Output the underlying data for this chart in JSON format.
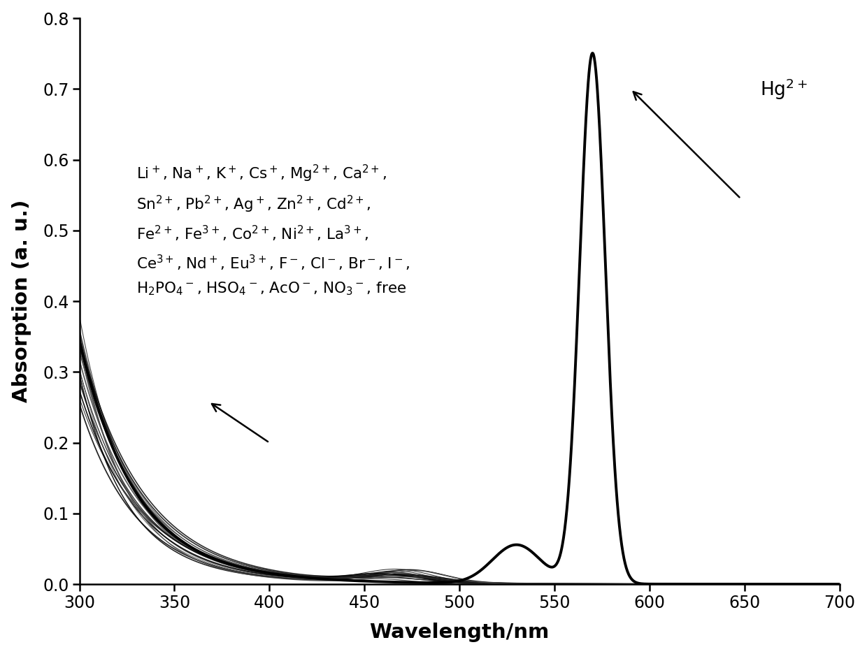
{
  "xlim": [
    300,
    700
  ],
  "ylim": [
    0,
    0.8
  ],
  "xticks": [
    300,
    350,
    400,
    450,
    500,
    550,
    600,
    650,
    700
  ],
  "yticks": [
    0.0,
    0.1,
    0.2,
    0.3,
    0.4,
    0.5,
    0.6,
    0.7,
    0.8
  ],
  "xlabel": "Wavelength/nm",
  "ylabel": "Absorption (a. u.)",
  "background_color": "#ffffff",
  "n_background_lines": 18
}
